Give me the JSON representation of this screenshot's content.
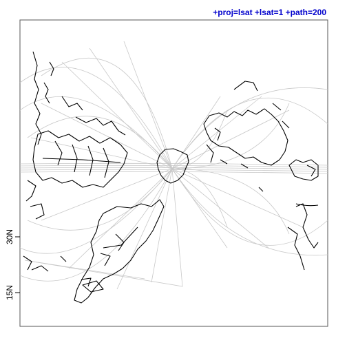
{
  "title": "+proj=lsat +lsat=1 +path=200",
  "axis": {
    "y_ticks": [
      {
        "label": "15N",
        "value": 15
      },
      {
        "label": "30N",
        "value": 30
      }
    ]
  },
  "colors": {
    "title": "#0000cc",
    "graticule": "#c8c8c8",
    "coastline": "#000000",
    "frame": "#555555"
  }
}
